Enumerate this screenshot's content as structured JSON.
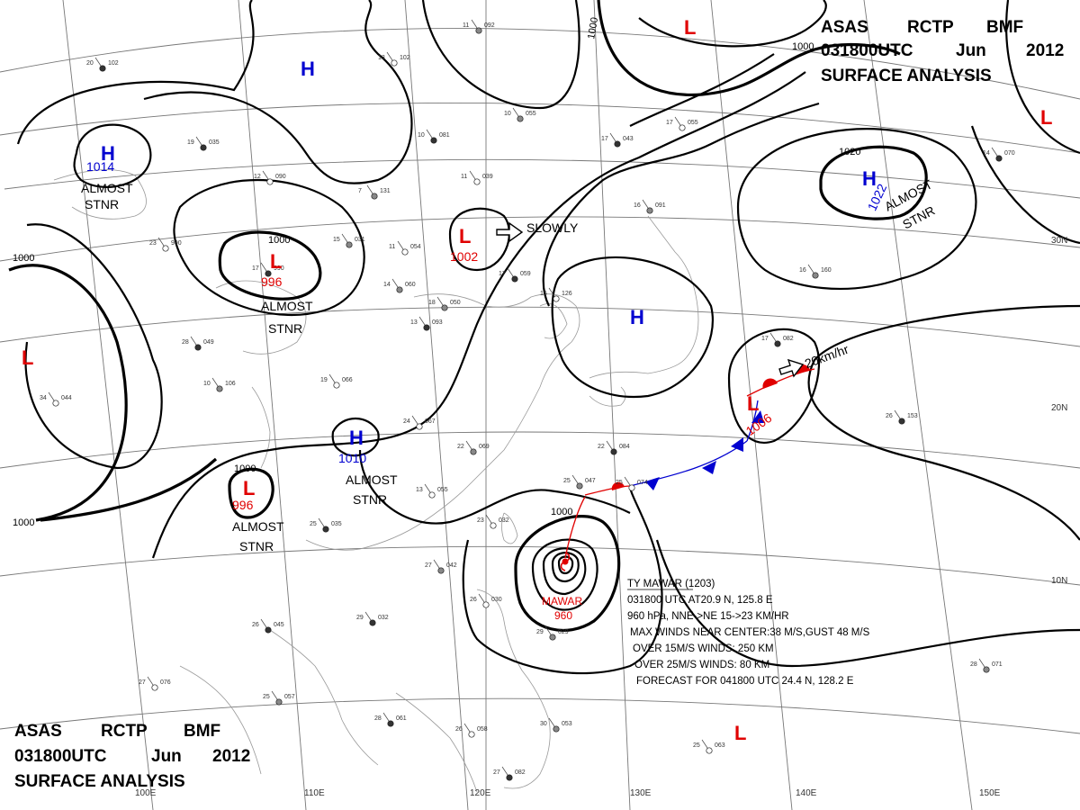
{
  "header_top": {
    "line1": [
      "ASAS",
      "RCTP",
      "BMF"
    ],
    "line2": [
      "031800UTC",
      "Jun",
      "2012"
    ],
    "line3": "SURFACE ANALYSIS"
  },
  "header_bottom": {
    "line1": [
      "ASAS",
      "RCTP",
      "BMF"
    ],
    "line2": [
      "031800UTC",
      "Jun",
      "2012"
    ],
    "line3": "SURFACE ANALYSIS"
  },
  "pressure_systems": [
    {
      "type": "H",
      "value": "1014",
      "note1": "ALMOST",
      "note2": "STNR"
    },
    {
      "type": "L",
      "value": "996",
      "note1": "ALMOST",
      "note2": "STNR"
    },
    {
      "type": "L",
      "value": "1002",
      "note1": "SLOWLY"
    },
    {
      "type": "H",
      "value": "1010",
      "note1": "ALMOST",
      "note2": "STNR"
    },
    {
      "type": "L",
      "value": "996",
      "note1": "ALMOST",
      "note2": "STNR"
    },
    {
      "type": "H",
      "value": "1022",
      "note1": "ALMOST",
      "note2": "STNR"
    },
    {
      "type": "L",
      "value": "1006",
      "note1": "20km/hr"
    },
    {
      "type": "H",
      "value": ""
    },
    {
      "type": "H",
      "value": ""
    },
    {
      "type": "L",
      "value": ""
    },
    {
      "type": "L",
      "value": ""
    },
    {
      "type": "L",
      "value": ""
    },
    {
      "type": "L",
      "value": ""
    }
  ],
  "isobar_labels": [
    "1000",
    "1000",
    "1000",
    "1000",
    "1000",
    "1000",
    "1020"
  ],
  "latitude_labels": [
    "30N",
    "20N",
    "10N"
  ],
  "longitude_labels": [
    "100E",
    "110E",
    "120E",
    "130E",
    "140E",
    "150E"
  ],
  "typhoon": {
    "name": "MAWAR",
    "pressure": "960",
    "bulletin": [
      "TY MAWAR (1203)",
      "031800 UTC  AT20.9 N, 125.8 E",
      "960 hPa, NNE->NE  15->23 KM/HR",
      "MAX WINDS NEAR CENTER:38 M/S,GUST 48 M/S",
      "OVER 15M/S WINDS: 250 KM",
      "OVER 25M/S WINDS: 80 KM",
      "FORECAST FOR 041800 UTC 24.4 N, 128.2 E"
    ]
  },
  "stations": [
    {
      "a": "20",
      "b": "102"
    },
    {
      "a": "13",
      "b": "102"
    },
    {
      "a": "11",
      "b": "092"
    },
    {
      "a": "19",
      "b": "035"
    },
    {
      "a": "12",
      "b": "090"
    },
    {
      "a": "10",
      "b": "055"
    },
    {
      "a": "10",
      "b": "081"
    },
    {
      "a": "11",
      "b": "039"
    },
    {
      "a": "7",
      "b": "131"
    },
    {
      "a": "17",
      "b": "043"
    },
    {
      "a": "17",
      "b": "055"
    },
    {
      "a": "16",
      "b": "091"
    },
    {
      "a": "14",
      "b": "070"
    },
    {
      "a": "11",
      "b": "054"
    },
    {
      "a": "14",
      "b": "060"
    },
    {
      "a": "17",
      "b": "990"
    },
    {
      "a": "23",
      "b": "990"
    },
    {
      "a": "18",
      "b": "050"
    },
    {
      "a": "17",
      "b": "059"
    },
    {
      "a": "16",
      "b": "126"
    },
    {
      "a": "16",
      "b": "160"
    },
    {
      "a": "13",
      "b": "093"
    },
    {
      "a": "19",
      "b": "066"
    },
    {
      "a": "10",
      "b": "106"
    },
    {
      "a": "17",
      "b": "082"
    },
    {
      "a": "24",
      "b": "067"
    },
    {
      "a": "22",
      "b": "069"
    },
    {
      "a": "22",
      "b": "084"
    },
    {
      "a": "13",
      "b": "055"
    },
    {
      "a": "25",
      "b": "047"
    },
    {
      "a": "25",
      "b": "035"
    },
    {
      "a": "23",
      "b": "032"
    },
    {
      "a": "27",
      "b": "042"
    },
    {
      "a": "29",
      "b": "032"
    },
    {
      "a": "26",
      "b": "030"
    },
    {
      "a": "29",
      "b": "029"
    },
    {
      "a": "26",
      "b": "045"
    },
    {
      "a": "27",
      "b": "076"
    },
    {
      "a": "25",
      "b": "057"
    },
    {
      "a": "28",
      "b": "061"
    },
    {
      "a": "26",
      "b": "058"
    },
    {
      "a": "30",
      "b": "053"
    },
    {
      "a": "27",
      "b": "082"
    },
    {
      "a": "25",
      "b": "063"
    },
    {
      "a": "28",
      "b": "071"
    },
    {
      "a": "26",
      "b": "153"
    },
    {
      "a": "34",
      "b": "044"
    },
    {
      "a": "15",
      "b": "031"
    },
    {
      "a": "28",
      "b": "049"
    },
    {
      "a": "25",
      "b": "074"
    }
  ]
}
